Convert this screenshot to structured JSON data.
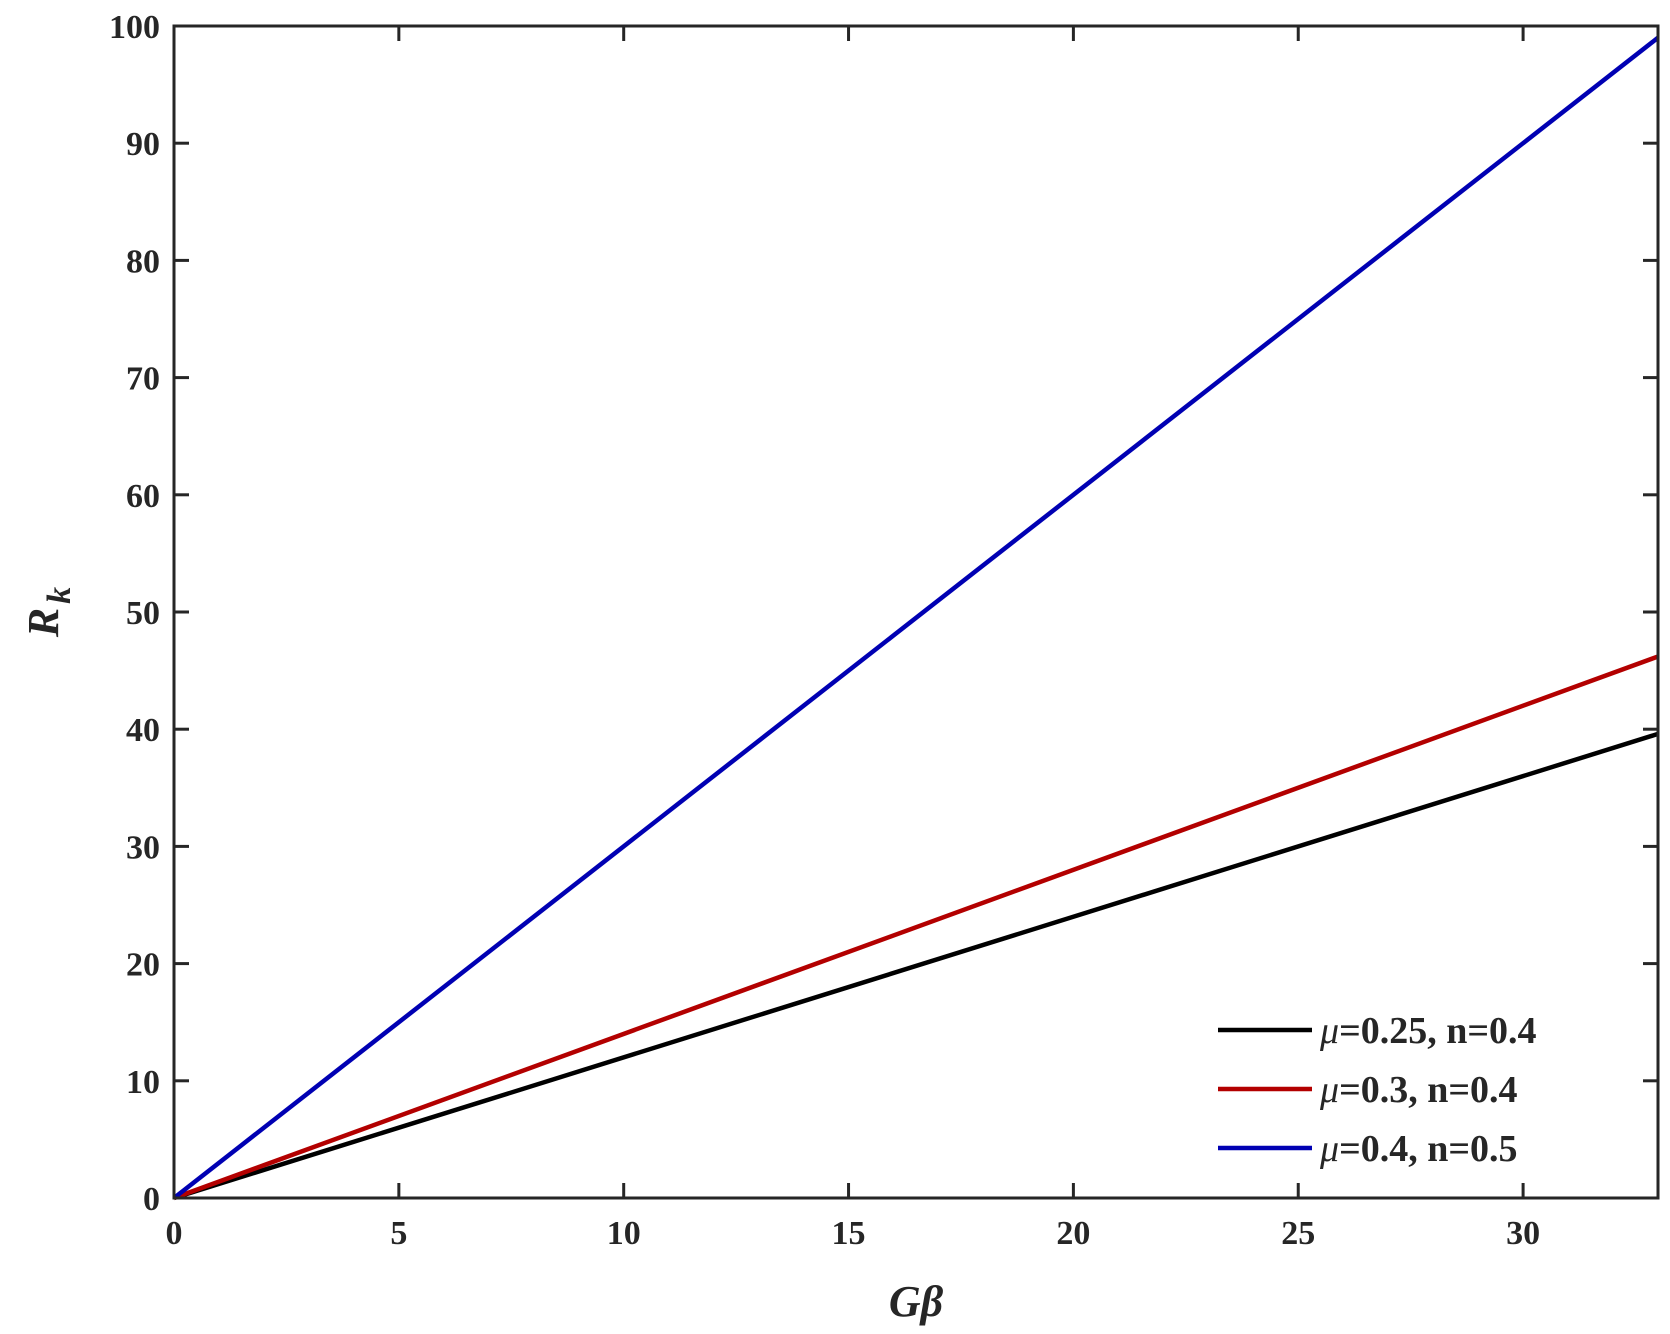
{
  "chart_data": {
    "type": "line",
    "title": "",
    "xlabel": "Gβ",
    "ylabel": {
      "main": "R",
      "sub": "k"
    },
    "xlim": [
      0,
      33
    ],
    "ylim": [
      0,
      100
    ],
    "xticks": [
      0,
      5,
      10,
      15,
      20,
      25,
      30
    ],
    "yticks": [
      0,
      10,
      20,
      30,
      40,
      50,
      60,
      70,
      80,
      90,
      100
    ],
    "grid": false,
    "legend_position": "bottom-right",
    "series": [
      {
        "name": "μ=0.25, n=0.4",
        "name_symbol": "μ",
        "name_rest": "=0.25, n=0.4",
        "color": "#000000",
        "x": [
          0,
          33
        ],
        "y": [
          0,
          39.6
        ]
      },
      {
        "name": "μ=0.3, n=0.4",
        "name_symbol": "μ",
        "name_rest": "=0.3, n=0.4",
        "color": "#b30000",
        "x": [
          0,
          33
        ],
        "y": [
          0,
          46.2
        ]
      },
      {
        "name": "μ=0.4, n=0.5",
        "name_symbol": "μ",
        "name_rest": "=0.4, n=0.5",
        "color": "#0000b3",
        "x": [
          0,
          33
        ],
        "y": [
          0,
          99
        ]
      }
    ]
  }
}
